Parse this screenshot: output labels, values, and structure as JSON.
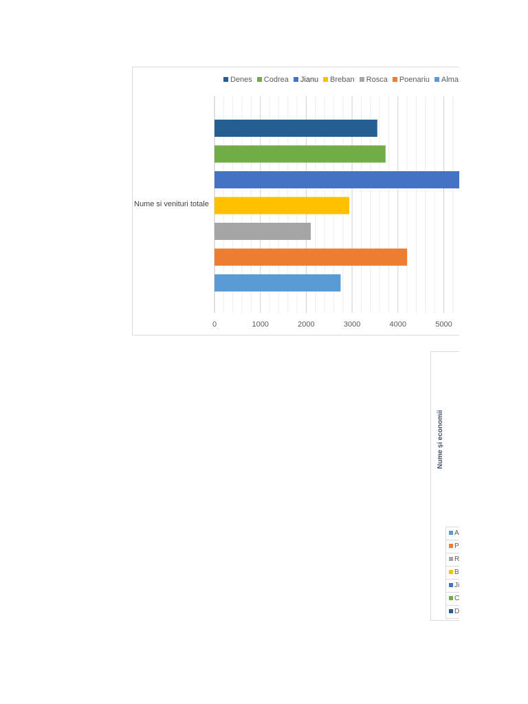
{
  "chart_data": [
    {
      "type": "bar",
      "orientation": "horizontal",
      "categories": [
        "Nume si venituri totale"
      ],
      "series": [
        {
          "name": "Denes",
          "values": [
            3550
          ],
          "color": "#255e91"
        },
        {
          "name": "Codrea",
          "values": [
            3730
          ],
          "color": "#70ad47"
        },
        {
          "name": "Jianu",
          "values": [
            5500
          ],
          "color": "#4472c4"
        },
        {
          "name": "Breban",
          "values": [
            2940
          ],
          "color": "#ffc000"
        },
        {
          "name": "Rosca",
          "values": [
            2100
          ],
          "color": "#a5a5a5"
        },
        {
          "name": "Poenariu",
          "values": [
            4200
          ],
          "color": "#ed7d31"
        },
        {
          "name": "Alma",
          "values": [
            2750
          ],
          "color": "#5b9bd5"
        }
      ],
      "legend_labels": [
        "Denes",
        "Codrea",
        "Jianu",
        "Breban",
        "Rosca",
        "Poenariu",
        "Alma"
      ],
      "xticks": [
        "0",
        "1000",
        "2000",
        "3000",
        "4000",
        "5000"
      ],
      "xlim": [
        0,
        5500
      ],
      "grid": true,
      "legend": "top"
    },
    {
      "type": "bar",
      "title": "Nume și economii",
      "legend": "bottom",
      "legend_entries": [
        {
          "label": "A",
          "color": "#5b9bd5"
        },
        {
          "label": "P",
          "color": "#ed7d31"
        },
        {
          "label": "R",
          "color": "#a5a5a5"
        },
        {
          "label": "B",
          "color": "#ffc000"
        },
        {
          "label": "Ji",
          "color": "#4472c4"
        },
        {
          "label": "C",
          "color": "#70ad47"
        },
        {
          "label": "D",
          "color": "#255e91"
        }
      ]
    }
  ]
}
